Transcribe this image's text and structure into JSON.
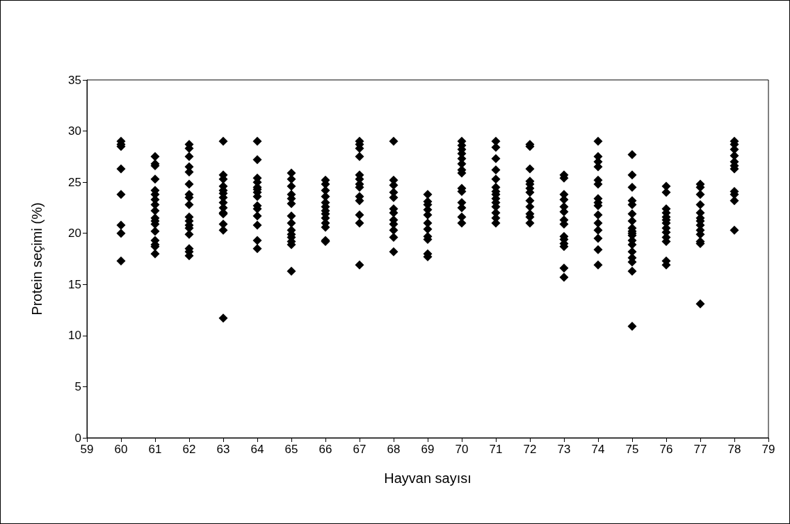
{
  "chart_data": {
    "type": "scatter",
    "xlabel": "Hayvan sayısı",
    "ylabel": "Protein seçimi (%)",
    "xlim": [
      59,
      79
    ],
    "xticks": [
      59,
      60,
      61,
      62,
      63,
      64,
      65,
      66,
      67,
      68,
      69,
      70,
      71,
      72,
      73,
      74,
      75,
      76,
      77,
      78,
      79
    ],
    "ylim": [
      0,
      35
    ],
    "yticks": [
      0,
      5,
      10,
      15,
      20,
      25,
      30,
      35
    ],
    "marker": "diamond",
    "series": [
      {
        "color": "#000000",
        "x": [
          60,
          60,
          60,
          60,
          60,
          60,
          60,
          60,
          61,
          61,
          61,
          61,
          61,
          61,
          61,
          61,
          61,
          61,
          61,
          61,
          61,
          61,
          61,
          61,
          61,
          62,
          62,
          62,
          62,
          62,
          62,
          62,
          62,
          62,
          62,
          62,
          62,
          62,
          62,
          62,
          62,
          62,
          63,
          63,
          63,
          63,
          63,
          63,
          63,
          63,
          63,
          63,
          63,
          63,
          63,
          63,
          64,
          64,
          64,
          64,
          64,
          64,
          64,
          64,
          64,
          64,
          64,
          64,
          64,
          64,
          65,
          65,
          65,
          65,
          65,
          65,
          65,
          65,
          65,
          65,
          65,
          65,
          65,
          65,
          66,
          66,
          66,
          66,
          66,
          66,
          66,
          66,
          66,
          66,
          66,
          66,
          66,
          67,
          67,
          67,
          67,
          67,
          67,
          67,
          67,
          67,
          67,
          67,
          67,
          67,
          68,
          68,
          68,
          68,
          68,
          68,
          68,
          68,
          68,
          68,
          68,
          68,
          69,
          69,
          69,
          69,
          69,
          69,
          69,
          69,
          69,
          69,
          69,
          70,
          70,
          70,
          70,
          70,
          70,
          70,
          70,
          70,
          70,
          70,
          70,
          70,
          70,
          71,
          71,
          71,
          71,
          71,
          71,
          71,
          71,
          71,
          71,
          71,
          71,
          71,
          71,
          72,
          72,
          72,
          72,
          72,
          72,
          72,
          72,
          72,
          72,
          72,
          72,
          73,
          73,
          73,
          73,
          73,
          73,
          73,
          73,
          73,
          73,
          73,
          73,
          73,
          73,
          74,
          74,
          74,
          74,
          74,
          74,
          74,
          74,
          74,
          74,
          74,
          74,
          74,
          74,
          74,
          75,
          75,
          75,
          75,
          75,
          75,
          75,
          75,
          75,
          75,
          75,
          75,
          75,
          75,
          75,
          75,
          75,
          75,
          76,
          76,
          76,
          76,
          76,
          76,
          76,
          76,
          76,
          76,
          76,
          76,
          76,
          77,
          77,
          77,
          77,
          77,
          77,
          77,
          77,
          77,
          77,
          77,
          77,
          77,
          78,
          78,
          78,
          78,
          78,
          78,
          78,
          78,
          78,
          78,
          78
        ],
        "values": [
          29.0,
          28.7,
          28.5,
          26.3,
          23.8,
          20.8,
          20.0,
          17.3,
          27.5,
          26.8,
          26.6,
          25.3,
          24.2,
          23.8,
          23.3,
          22.8,
          22.2,
          21.5,
          21.2,
          20.9,
          20.2,
          19.3,
          18.9,
          18.7,
          18.0,
          28.7,
          28.3,
          27.5,
          26.5,
          26.0,
          24.8,
          23.8,
          23.5,
          22.8,
          21.6,
          21.2,
          20.8,
          20.5,
          19.9,
          18.5,
          18.2,
          17.8,
          29.0,
          25.7,
          25.3,
          24.6,
          24.2,
          23.9,
          23.5,
          23.0,
          22.5,
          22.0,
          21.9,
          20.9,
          20.3,
          11.7,
          29.0,
          27.2,
          25.4,
          25.0,
          24.5,
          24.3,
          24.0,
          23.6,
          22.7,
          22.4,
          21.7,
          20.8,
          19.3,
          18.5,
          25.9,
          25.3,
          24.6,
          23.8,
          23.4,
          22.9,
          21.7,
          21.0,
          20.3,
          19.9,
          19.6,
          19.2,
          18.9,
          16.3,
          25.2,
          24.8,
          24.2,
          23.6,
          23.0,
          22.6,
          22.2,
          21.9,
          21.5,
          21.0,
          20.6,
          19.3,
          19.2,
          29.0,
          28.7,
          28.3,
          27.5,
          25.7,
          25.3,
          24.8,
          24.5,
          23.6,
          23.2,
          21.8,
          21.0,
          16.9,
          29.0,
          25.2,
          24.7,
          24.0,
          23.5,
          22.4,
          22.0,
          21.3,
          20.9,
          20.3,
          19.6,
          18.2,
          23.8,
          23.1,
          22.8,
          22.3,
          21.8,
          21.0,
          20.4,
          19.7,
          19.4,
          18.0,
          17.7,
          29.0,
          28.6,
          28.2,
          27.8,
          27.3,
          26.8,
          26.2,
          25.9,
          24.4,
          24.1,
          23.0,
          22.5,
          21.6,
          21.0,
          29.0,
          28.4,
          27.3,
          26.2,
          25.3,
          24.5,
          24.1,
          23.8,
          23.4,
          23.0,
          22.6,
          22.0,
          21.5,
          21.0,
          28.7,
          28.5,
          26.3,
          25.1,
          24.8,
          24.4,
          24.0,
          23.2,
          22.6,
          21.9,
          21.6,
          21.0,
          25.7,
          25.4,
          23.8,
          23.3,
          22.6,
          22.1,
          21.3,
          20.9,
          19.7,
          19.4,
          19.0,
          18.7,
          16.6,
          15.7,
          29.0,
          27.5,
          27.0,
          26.5,
          25.2,
          24.8,
          23.4,
          23.0,
          22.7,
          21.8,
          21.0,
          20.3,
          19.5,
          18.4,
          16.9,
          27.7,
          25.7,
          24.5,
          23.2,
          22.8,
          21.9,
          21.2,
          20.5,
          20.2,
          20.0,
          19.8,
          19.3,
          18.9,
          18.2,
          17.6,
          17.2,
          16.3,
          10.9,
          24.6,
          24.0,
          22.4,
          22.0,
          21.6,
          21.3,
          21.0,
          20.5,
          20.1,
          19.6,
          19.2,
          17.3,
          16.9,
          24.8,
          24.5,
          23.8,
          22.8,
          22.0,
          21.5,
          21.2,
          20.8,
          20.3,
          19.9,
          19.2,
          19.0,
          13.1,
          29.0,
          28.7,
          28.2,
          27.6,
          27.0,
          26.6,
          26.3,
          24.1,
          23.8,
          23.2,
          20.3
        ]
      }
    ]
  }
}
